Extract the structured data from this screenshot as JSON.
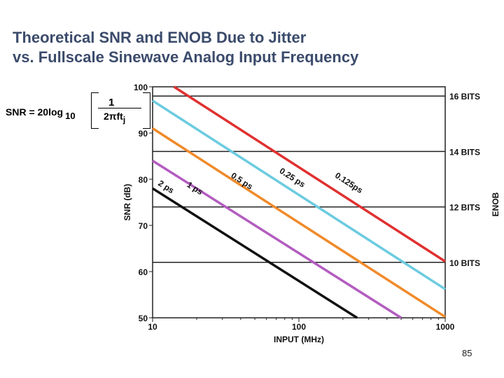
{
  "title": {
    "line1": "Theoretical SNR and ENOB Due to Jitter",
    "line2": "vs. Fullscale Sinewave Analog Input Frequency"
  },
  "formula": {
    "lhs": "SNR  = 20log",
    "log_base": "10",
    "numerator": "1",
    "denominator": "2πft",
    "denominator_sub": "j"
  },
  "page_number": "85",
  "chart_data": {
    "type": "line",
    "xscale": "log",
    "xlabel": "INPUT (MHz)",
    "ylabel": "SNR (dB)",
    "y2label": "ENOB",
    "xlim": [
      10,
      1000
    ],
    "ylim": [
      50,
      100
    ],
    "x_ticks": [
      10,
      100,
      1000
    ],
    "x_tick_labels": [
      "10",
      "100",
      "1000"
    ],
    "y_ticks": [
      50,
      60,
      70,
      80,
      90,
      100
    ],
    "y_tick_labels": [
      "50",
      "60",
      "70",
      "80",
      "90",
      "100"
    ],
    "grid": false,
    "enob_lines": [
      {
        "snr": 98,
        "label": "16 BITS"
      },
      {
        "snr": 86,
        "label": "14 BITS"
      },
      {
        "snr": 74,
        "label": "12 BITS"
      },
      {
        "snr": 62,
        "label": "10 BITS"
      }
    ],
    "series": [
      {
        "name": "0.125ps",
        "color": "#e03030",
        "x": [
          14,
          1000
        ],
        "y": [
          100,
          62.2
        ]
      },
      {
        "name": "0.25 ps",
        "color": "#6ccbe0",
        "x": [
          10,
          1000
        ],
        "y": [
          97,
          56.2
        ]
      },
      {
        "name": "0.5 ps",
        "color": "#f08a2a",
        "x": [
          10,
          1000
        ],
        "y": [
          91,
          50.2
        ]
      },
      {
        "name": "1 ps",
        "color": "#b35cc0",
        "x": [
          10,
          500
        ],
        "y": [
          84,
          50
        ]
      },
      {
        "name": "2 ps",
        "color": "#111111",
        "x": [
          10,
          250
        ],
        "y": [
          78,
          50
        ]
      }
    ]
  }
}
